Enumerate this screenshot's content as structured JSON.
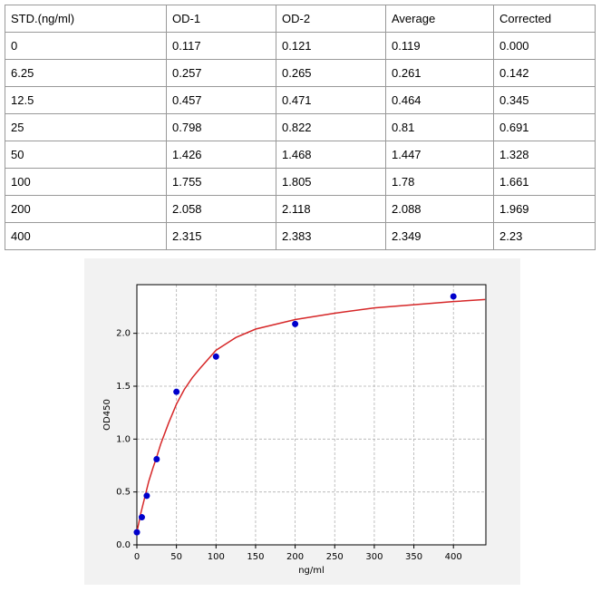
{
  "table": {
    "header": [
      "STD.(ng/ml)",
      "OD-1",
      "OD-2",
      "Average",
      "Corrected"
    ],
    "rows": [
      [
        "0",
        "0.117",
        "0.121",
        "0.119",
        "0.000"
      ],
      [
        "6.25",
        "0.257",
        "0.265",
        "0.261",
        "0.142"
      ],
      [
        "12.5",
        "0.457",
        "0.471",
        "0.464",
        "0.345"
      ],
      [
        "25",
        "0.798",
        "0.822",
        "0.81",
        "0.691"
      ],
      [
        "50",
        "1.426",
        "1.468",
        "1.447",
        "1.328"
      ],
      [
        "100",
        "1.755",
        "1.805",
        "1.78",
        "1.661"
      ],
      [
        "200",
        "2.058",
        "2.118",
        "2.088",
        "1.969"
      ],
      [
        "400",
        "2.315",
        "2.383",
        "2.349",
        "2.23"
      ]
    ]
  },
  "chart_data": {
    "type": "scatter",
    "x_label": "ng/ml",
    "y_label": "OD450",
    "x": [
      0,
      6.25,
      12.5,
      25,
      50,
      100,
      200,
      400
    ],
    "values": [
      0.119,
      0.261,
      0.464,
      0.81,
      1.447,
      1.78,
      2.088,
      2.349
    ],
    "color": "#0000cc",
    "curve": {
      "color": "#d62728",
      "x": [
        0,
        5,
        10,
        15,
        20,
        25,
        30,
        40,
        50,
        60,
        70,
        80,
        100,
        125,
        150,
        200,
        250,
        300,
        350,
        400,
        440
      ],
      "values": [
        0.12,
        0.3,
        0.45,
        0.6,
        0.72,
        0.83,
        0.95,
        1.15,
        1.33,
        1.47,
        1.58,
        1.67,
        1.84,
        1.96,
        2.04,
        2.13,
        2.19,
        2.24,
        2.27,
        2.3,
        2.32
      ]
    },
    "xlim": [
      0,
      441
    ],
    "ylim": [
      0,
      2.46
    ],
    "xticks": [
      0,
      50,
      100,
      150,
      200,
      250,
      300,
      350,
      400
    ],
    "yticks": [
      {
        "value": 0,
        "label": "0.0"
      },
      0.5,
      {
        "value": 1,
        "label": "1.0"
      },
      1.5,
      {
        "value": 2,
        "label": "2.0"
      }
    ],
    "grid": true
  }
}
